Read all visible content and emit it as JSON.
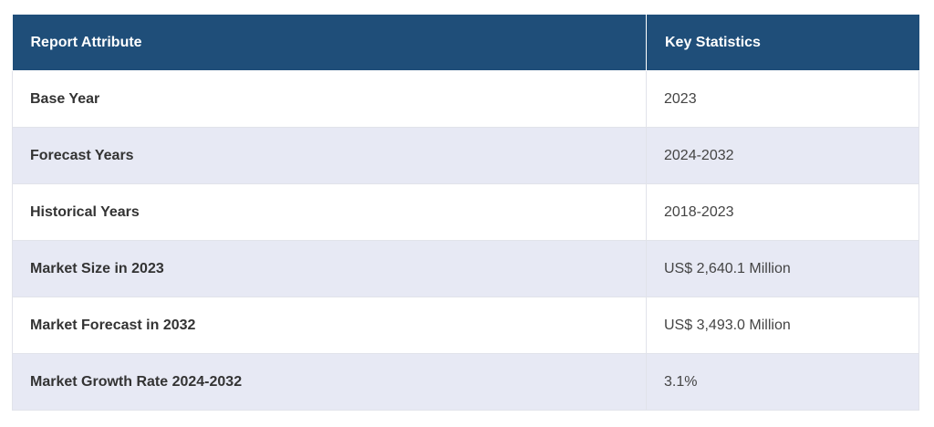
{
  "table": {
    "headers": [
      "Report Attribute",
      "Key Statistics"
    ],
    "rows": [
      [
        "Base Year",
        "2023"
      ],
      [
        "Forecast Years",
        "2024-2032"
      ],
      [
        "Historical Years",
        "2018-2023"
      ],
      [
        "Market Size in 2023",
        "US$ 2,640.1 Million"
      ],
      [
        "Market Forecast in 2032",
        "US$ 3,493.0 Million"
      ],
      [
        "Market Growth Rate 2024-2032",
        "3.1%"
      ]
    ]
  },
  "colors": {
    "header_bg": "#1f4e79",
    "header_text": "#ffffff",
    "stripe_bg": "#e7e9f4",
    "row_bg": "#ffffff"
  }
}
